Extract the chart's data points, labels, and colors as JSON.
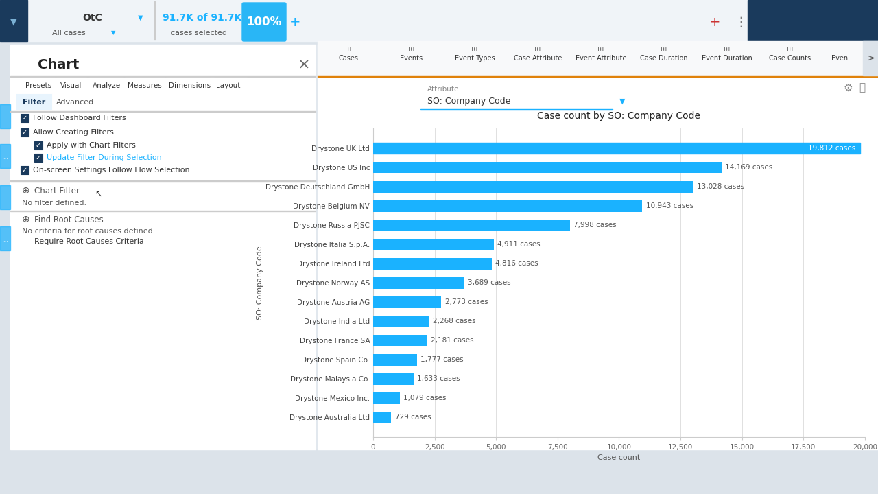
{
  "title": "Case count by SO: Company Code",
  "chart_title_fontsize": 11,
  "bar_color": "#1ab2ff",
  "bar_color_highlight": "#0099e6",
  "xlabel": "Case count",
  "ylabel": "SO: Company Code",
  "categories": [
    "Drystone UK Ltd",
    "Drystone US Inc",
    "Drystone Deutschland GmbH",
    "Drystone Belgium NV",
    "Drystone Russia PJSC",
    "Drystone Italia S.p.A.",
    "Drystone Ireland Ltd",
    "Drystone Norway AS",
    "Drystone Austria AG",
    "Drystone India Ltd",
    "Drystone France SA",
    "Drystone Spain Co.",
    "Drystone Malaysia Co.",
    "Drystone Mexico Inc.",
    "Drystone Australia Ltd"
  ],
  "values": [
    19812,
    14169,
    13028,
    10943,
    7998,
    4911,
    4816,
    3689,
    2773,
    2268,
    2181,
    1777,
    1633,
    1079,
    729
  ],
  "labels": [
    "19,812 cases",
    "14,169 cases",
    "13,028 cases",
    "10,943 cases",
    "7,998 cases",
    "4,911 cases",
    "4,816 cases",
    "3,689 cases",
    "2,773 cases",
    "2,268 cases",
    "2,181 cases",
    "1,777 cases",
    "1,633 cases",
    "1,079 cases",
    "729 cases"
  ],
  "xlim": [
    0,
    20000
  ],
  "xticks": [
    0,
    2500,
    5000,
    7500,
    10000,
    12500,
    15000,
    17500,
    20000
  ],
  "xtick_labels": [
    "0",
    "2,500",
    "5,000",
    "7,500",
    "10,000",
    "12,500",
    "15,000",
    "17,500",
    "20,000"
  ],
  "bg_color": "#ffffff",
  "panel_bg": "#f5f5f5",
  "left_panel_bg": "#ffffff",
  "header_bg": "#1a3a5c",
  "header_light_bg": "#eef2f7",
  "top_bar_bg": "#f0f4f8",
  "filter_tab_active_bg": "#e8f4fd",
  "filter_tab_active_border": "#1ab2ff",
  "checkbox_color": "#1a3a5c",
  "tab_names": [
    "Presets",
    "Visual",
    "Analyze",
    "Measures",
    "Dimensions",
    "Layout"
  ],
  "sub_tab_names": [
    "Filter",
    "Advanced"
  ],
  "top_tabs": [
    "Cases",
    "Events",
    "Event Types",
    "Case Attribute",
    "Event Attribute",
    "Case Duration",
    "Event Duration",
    "Case Counts",
    "Even"
  ],
  "attribute_label": "Attribute",
  "attribute_value": "SO: Company Code",
  "otc_text": "OtC",
  "all_cases_text": "All cases",
  "stats_text": "91.7K of 91.7K",
  "stats_sub": "cases selected",
  "percent_text": "100%",
  "chart_panel_title": "Chart",
  "filter_items": [
    "Follow Dashboard Filters",
    "Allow Creating Filters",
    "Apply with Chart Filters",
    "Update Filter During Selection",
    "On-screen Settings Follow Flow Selection"
  ],
  "chart_filter_text": "Chart Filter",
  "no_filter_text": "No filter defined.",
  "find_root_text": "Find Root Causes",
  "no_root_text": "No criteria for root causes defined.",
  "require_root_text": "Require Root Causes Criteria"
}
